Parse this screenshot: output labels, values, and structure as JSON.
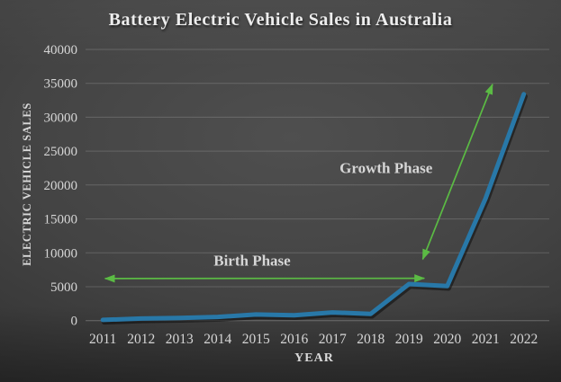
{
  "title": "Battery Electric Vehicle Sales in Australia",
  "colors": {
    "line_blue": "#2878a8",
    "annotation_text_green": "#3fa53a",
    "arrow_green": "#5bbb44",
    "grid_line": "rgba(255,255,255,0.17)",
    "zero_line": "rgba(255,255,255,0.25)",
    "axis_text": "#d6d6d6",
    "title_text": "#ededed"
  },
  "chart_data": {
    "type": "line",
    "title": "Battery Electric Vehicle Sales in Australia",
    "xlabel": "YEAR",
    "ylabel": "ELECTRIC VEHICLE SALES",
    "categories": [
      "2011",
      "2012",
      "2013",
      "2014",
      "2015",
      "2016",
      "2017",
      "2018",
      "2019",
      "2020",
      "2021",
      "2022"
    ],
    "values": [
      100,
      300,
      400,
      550,
      900,
      800,
      1200,
      1000,
      5400,
      5100,
      18000,
      33400
    ],
    "ylim": [
      0,
      40000
    ],
    "ytick_step": 5000,
    "grid": true,
    "legend": "none",
    "annotations": [
      {
        "label": "Birth Phase",
        "type": "double-arrow",
        "x1": 2011.06,
        "y1": 6200,
        "x2": 2019.4,
        "y2": 6250,
        "label_x": 2014.9,
        "label_y": 8100
      },
      {
        "label": "Growth Phase",
        "type": "double-arrow",
        "x1": 2019.36,
        "y1": 9050,
        "x2": 2021.18,
        "y2": 34850,
        "label_x": 2018.4,
        "label_y": 21800
      }
    ]
  }
}
